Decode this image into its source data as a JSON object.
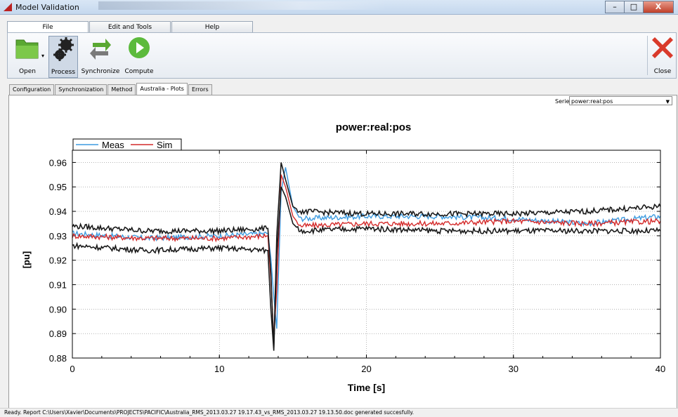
{
  "window": {
    "title": "Model Validation",
    "controls": [
      "–",
      "□",
      "X"
    ]
  },
  "ribbon": {
    "tabs": [
      {
        "label": "File",
        "active": true
      },
      {
        "label": "Edit and Tools"
      },
      {
        "label": "Help"
      }
    ],
    "buttons": {
      "open": "Open",
      "process": "Process",
      "synchronize": "Synchronize",
      "compute": "Compute",
      "close": "Close"
    }
  },
  "content_tabs": [
    {
      "label": "Configuration"
    },
    {
      "label": "Synchronization"
    },
    {
      "label": "Method"
    },
    {
      "label": "Australia - Plots",
      "active": true
    },
    {
      "label": "Errors"
    }
  ],
  "serie": {
    "label": "Serie:",
    "value": "power:real:pos"
  },
  "status": "Ready. Report C:\\Users\\Xavier\\Documents\\PROJECTS\\PACIFIC\\Australia_RMS_2013.03.27 19.17.43_vs_RMS_2013.03.27 19.13.50.doc generated succesfully.",
  "chart_data": {
    "type": "line",
    "title": "power:real:pos",
    "xlabel": "Time [s]",
    "ylabel": "[pu]",
    "xlim": [
      0,
      40
    ],
    "ylim": [
      0.88,
      0.965
    ],
    "xticks": [
      0,
      10,
      20,
      30,
      40
    ],
    "yticks": [
      0.88,
      0.89,
      0.9,
      0.91,
      0.92,
      0.93,
      0.94,
      0.95,
      0.96
    ],
    "ytick_labels": [
      "0.88",
      "0.89",
      "0.90",
      "0.91",
      "0.92",
      "0.93",
      "0.94",
      "0.95",
      "0.96"
    ],
    "grid": true,
    "legend": "top-left",
    "series": [
      {
        "name": "Meas",
        "color": "#3d9be0",
        "x": [
          0,
          5,
          10,
          13.3,
          13.5,
          13.7,
          13.9,
          14.2,
          14.5,
          15.0,
          15.5,
          20,
          25,
          30,
          35,
          40
        ],
        "y": [
          0.931,
          0.929,
          0.93,
          0.931,
          0.921,
          0.905,
          0.892,
          0.948,
          0.958,
          0.942,
          0.937,
          0.938,
          0.938,
          0.937,
          0.935,
          0.938
        ]
      },
      {
        "name": "Sim",
        "color": "#d42a2a",
        "x": [
          0,
          5,
          10,
          13.3,
          13.5,
          13.7,
          13.9,
          14.2,
          14.5,
          15.0,
          15.5,
          20,
          25,
          30,
          35,
          40
        ],
        "y": [
          0.93,
          0.929,
          0.929,
          0.93,
          0.912,
          0.888,
          0.908,
          0.955,
          0.95,
          0.938,
          0.934,
          0.935,
          0.935,
          0.936,
          0.935,
          0.936
        ]
      },
      {
        "name": "",
        "color": "#1a1a1a",
        "x": [
          0,
          5,
          10,
          13.3,
          13.5,
          13.7,
          13.9,
          14.2,
          14.5,
          15.0,
          15.5,
          20,
          25,
          30,
          35,
          40
        ],
        "y": [
          0.934,
          0.932,
          0.932,
          0.933,
          0.915,
          0.884,
          0.93,
          0.96,
          0.953,
          0.942,
          0.94,
          0.939,
          0.939,
          0.939,
          0.94,
          0.942
        ]
      },
      {
        "name": "",
        "color": "#1a1a1a",
        "x": [
          0,
          5,
          10,
          13.3,
          13.5,
          13.7,
          13.9,
          14.2,
          14.5,
          15.0,
          15.5,
          20,
          25,
          30,
          35,
          40
        ],
        "y": [
          0.926,
          0.924,
          0.925,
          0.924,
          0.9,
          0.883,
          0.922,
          0.95,
          0.946,
          0.935,
          0.932,
          0.933,
          0.932,
          0.932,
          0.932,
          0.932
        ]
      }
    ]
  }
}
